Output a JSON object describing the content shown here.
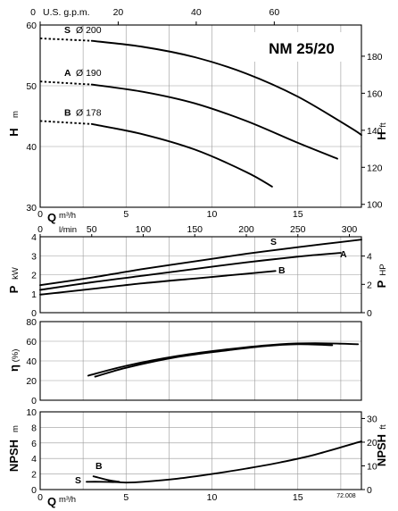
{
  "chart_data": [
    {
      "id": "head",
      "type": "line",
      "title": "NM 25/20",
      "top_axis": {
        "label": "U.S. g.p.m.",
        "ticks": [
          "0",
          "20",
          "40",
          "60"
        ],
        "values": [
          0,
          20,
          40,
          60
        ]
      },
      "ylabel": "H",
      "yunit": "m",
      "ylim": [
        30,
        60
      ],
      "yticks": [
        30,
        40,
        50,
        60
      ],
      "y2label": "H",
      "y2unit": "ft",
      "y2ticks": [
        100,
        120,
        140,
        160,
        180
      ],
      "xlim": [
        0,
        18.7
      ],
      "series": [
        {
          "name": "S",
          "diameter": "Ø 200",
          "dashed_until": 3,
          "x": [
            0,
            3,
            6,
            9,
            12,
            15,
            18,
            18.7
          ],
          "y": [
            57.8,
            57.4,
            56.4,
            54.7,
            52,
            48.2,
            43.2,
            41.9
          ]
        },
        {
          "name": "A",
          "diameter": "Ø 190",
          "dashed_until": 3,
          "x": [
            0,
            3,
            6,
            9,
            12,
            15,
            17.3
          ],
          "y": [
            50.7,
            50.2,
            49,
            47.1,
            44.2,
            40.6,
            38
          ]
        },
        {
          "name": "B",
          "diameter": "Ø 178",
          "dashed_until": 3,
          "x": [
            0,
            3,
            6,
            9,
            12,
            13.5
          ],
          "y": [
            44.2,
            43.7,
            42,
            39.5,
            35.8,
            33.4
          ]
        }
      ]
    },
    {
      "id": "power",
      "type": "line",
      "xlabel": "Q",
      "xunit": "m³/h",
      "xticks": [
        0,
        5,
        10,
        15
      ],
      "second_x_axis": {
        "label": "l/min",
        "ticks": [
          "0",
          "50",
          "100",
          "150",
          "200",
          "250",
          "300"
        ],
        "values": [
          0,
          50,
          100,
          150,
          200,
          250,
          300
        ]
      },
      "ylabel": "P",
      "yunit": "kW",
      "ylim": [
        0,
        4
      ],
      "yticks": [
        0,
        1,
        2,
        3,
        4
      ],
      "y2label": "P",
      "y2unit": "HP",
      "y2ticks": [
        0,
        2,
        4
      ],
      "xlim": [
        0,
        18.7
      ],
      "series": [
        {
          "name": "S",
          "x": [
            0,
            3,
            6,
            9,
            12,
            15,
            18.7
          ],
          "y": [
            1.45,
            1.85,
            2.3,
            2.7,
            3.1,
            3.45,
            3.85
          ]
        },
        {
          "name": "A",
          "x": [
            0,
            3,
            6,
            9,
            12,
            15,
            17.5
          ],
          "y": [
            1.2,
            1.6,
            1.95,
            2.3,
            2.65,
            2.95,
            3.15
          ]
        },
        {
          "name": "B",
          "x": [
            0,
            3,
            6,
            9,
            12,
            13.7
          ],
          "y": [
            0.95,
            1.25,
            1.55,
            1.8,
            2.05,
            2.2
          ]
        }
      ]
    },
    {
      "id": "efficiency",
      "type": "line",
      "ylabel": "η",
      "yunit": "(%)",
      "ylim": [
        0,
        80
      ],
      "yticks": [
        0,
        20,
        40,
        60,
        80
      ],
      "xlim": [
        0,
        18.7
      ],
      "series": [
        {
          "x": [
            2.8,
            5,
            8,
            11,
            14,
            16,
            18.5
          ],
          "y": [
            25,
            35,
            45,
            52,
            57,
            58,
            57
          ]
        },
        {
          "x": [
            3.2,
            5,
            8,
            11,
            13,
            15,
            17
          ],
          "y": [
            24,
            33,
            44,
            51,
            55,
            57,
            56
          ]
        }
      ]
    },
    {
      "id": "npsh",
      "type": "line",
      "xlabel": "Q",
      "xunit": "m³/h",
      "xticks": [
        0,
        5,
        10,
        15
      ],
      "ylabel": "NPSH",
      "yunit": "m",
      "ylim": [
        0,
        10
      ],
      "yticks": [
        0,
        2,
        4,
        6,
        8,
        10
      ],
      "y2label": "NPSH",
      "y2unit": "ft",
      "y2ticks": [
        0,
        10,
        20,
        30
      ],
      "xlim": [
        0,
        18.7
      ],
      "code": "72.008",
      "series": [
        {
          "name": "S",
          "x": [
            2.7,
            3.5,
            4.5,
            5,
            6,
            8,
            10,
            12,
            14,
            16,
            18.7
          ],
          "y": [
            1.0,
            1.0,
            0.95,
            0.9,
            1.0,
            1.4,
            2.0,
            2.7,
            3.5,
            4.5,
            6.2
          ]
        },
        {
          "name": "B",
          "x": [
            3.1,
            4,
            4.6
          ],
          "y": [
            1.7,
            1.2,
            1.0
          ]
        }
      ]
    }
  ]
}
